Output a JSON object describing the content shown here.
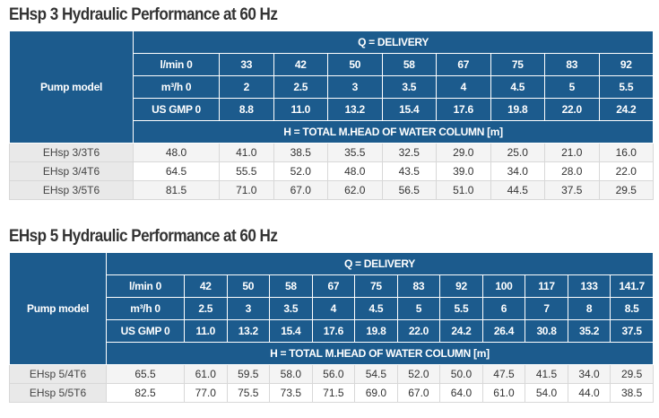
{
  "tables": [
    {
      "title": "EHsp 3 Hydraulic Performance at 60 Hz",
      "model_header": "Pump model",
      "delivery_header": "Q = DELIVERY",
      "head_header": "H = TOTAL M.HEAD OF WATER COLUMN [m]",
      "flow_rows": [
        [
          "l/min 0",
          "33",
          "42",
          "50",
          "58",
          "67",
          "75",
          "83",
          "92"
        ],
        [
          "m³/h 0",
          "2",
          "2.5",
          "3",
          "3.5",
          "4",
          "4.5",
          "5",
          "5.5"
        ],
        [
          "US GMP 0",
          "8.8",
          "11.0",
          "13.2",
          "15.4",
          "17.6",
          "19.8",
          "22.0",
          "24.2"
        ]
      ],
      "rows": [
        [
          "EHsp 3/3T6",
          "48.0",
          "41.0",
          "38.5",
          "35.5",
          "32.5",
          "29.0",
          "25.0",
          "21.0",
          "16.0"
        ],
        [
          "EHsp 3/4T6",
          "64.5",
          "55.5",
          "52.0",
          "48.0",
          "43.5",
          "39.0",
          "34.0",
          "28.0",
          "22.0"
        ],
        [
          "EHsp 3/5T6",
          "81.5",
          "71.0",
          "67.0",
          "62.0",
          "56.5",
          "51.0",
          "44.5",
          "37.5",
          "29.5"
        ]
      ]
    },
    {
      "title": "EHsp 5 Hydraulic Performance at 60 Hz",
      "model_header": "Pump model",
      "delivery_header": "Q = DELIVERY",
      "head_header": "H = TOTAL M.HEAD OF WATER COLUMN [m]",
      "flow_rows": [
        [
          "l/min 0",
          "42",
          "50",
          "58",
          "67",
          "75",
          "83",
          "92",
          "100",
          "117",
          "133",
          "141.7"
        ],
        [
          "m³/h 0",
          "2.5",
          "3",
          "3.5",
          "4",
          "4.5",
          "5",
          "5.5",
          "6",
          "7",
          "8",
          "8.5"
        ],
        [
          "US GMP 0",
          "11.0",
          "13.2",
          "15.4",
          "17.6",
          "19.8",
          "22.0",
          "24.2",
          "26.4",
          "30.8",
          "35.2",
          "37.5"
        ]
      ],
      "rows": [
        [
          "EHsp 5/4T6",
          "65.5",
          "61.0",
          "59.5",
          "58.0",
          "56.0",
          "54.5",
          "52.0",
          "50.0",
          "47.5",
          "41.5",
          "34.0",
          "29.5"
        ],
        [
          "EHsp 5/5T6",
          "82.5",
          "77.0",
          "75.5",
          "73.5",
          "71.5",
          "69.0",
          "67.0",
          "64.0",
          "61.0",
          "54.0",
          "44.0",
          "38.5"
        ]
      ]
    }
  ]
}
